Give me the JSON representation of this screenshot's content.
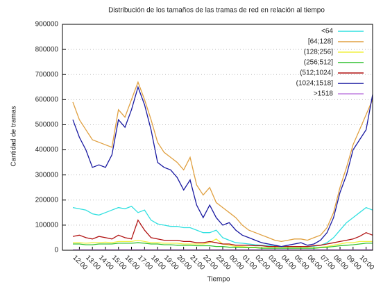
{
  "chart_data": {
    "type": "line",
    "title": "Distribución de los tamaños de las tramas de red en relación al tiempo",
    "x_label": "Tiempo",
    "y_label": "Cantidad de tramas",
    "categories": [
      null,
      "12:00",
      null,
      "13:00",
      null,
      "14:00",
      null,
      "15:00",
      null,
      "16:00",
      null,
      "17:00",
      null,
      "18:00",
      null,
      "19:00",
      null,
      "20:00",
      null,
      "21:00",
      null,
      "22:00",
      null,
      "23:00",
      null,
      "00:00",
      null,
      "01:00",
      null,
      "02:00",
      null,
      "03:00",
      null,
      "04:00",
      null,
      "05:00",
      null,
      "06:00",
      null,
      "07:00",
      null,
      "08:00",
      null,
      "09:00",
      null,
      "10:00",
      null
    ],
    "ylim": [
      0,
      900000
    ],
    "yticks": [
      0,
      100000,
      200000,
      300000,
      400000,
      500000,
      600000,
      700000,
      800000,
      900000
    ],
    "grid": true,
    "legend": "top-right",
    "series": [
      {
        "name": "<64",
        "color": "#30e0e0",
        "values": [
          170000,
          165000,
          160000,
          145000,
          140000,
          150000,
          160000,
          170000,
          165000,
          175000,
          150000,
          160000,
          120000,
          105000,
          100000,
          95000,
          95000,
          90000,
          90000,
          80000,
          70000,
          70000,
          80000,
          50000,
          40000,
          30000,
          28000,
          25000,
          22000,
          20000,
          18000,
          16000,
          15000,
          15000,
          15000,
          15000,
          15000,
          16000,
          20000,
          30000,
          50000,
          80000,
          110000,
          130000,
          150000,
          170000,
          160000
        ]
      },
      {
        "name": "[64;128]",
        "color": "#e0a040",
        "values": [
          590000,
          520000,
          480000,
          440000,
          430000,
          420000,
          410000,
          560000,
          530000,
          600000,
          670000,
          600000,
          520000,
          430000,
          390000,
          370000,
          350000,
          320000,
          370000,
          260000,
          220000,
          250000,
          190000,
          170000,
          150000,
          130000,
          100000,
          80000,
          70000,
          60000,
          50000,
          40000,
          35000,
          40000,
          45000,
          45000,
          40000,
          50000,
          60000,
          90000,
          150000,
          250000,
          330000,
          420000,
          480000,
          540000,
          600000
        ]
      },
      {
        "name": "(128;256]",
        "color": "#f0f040",
        "values": [
          30000,
          30000,
          28000,
          30000,
          30000,
          32000,
          30000,
          35000,
          35000,
          35000,
          40000,
          35000,
          30000,
          30000,
          28000,
          28000,
          28000,
          25000,
          25000,
          25000,
          25000,
          30000,
          45000,
          25000,
          20000,
          15000,
          15000,
          12000,
          12000,
          10000,
          10000,
          10000,
          10000,
          10000,
          10000,
          10000,
          10000,
          10000,
          12000,
          15000,
          20000,
          25000,
          30000,
          30000,
          35000,
          35000,
          35000
        ]
      },
      {
        "name": "(256;512]",
        "color": "#30c030",
        "values": [
          25000,
          25000,
          22000,
          22000,
          25000,
          25000,
          25000,
          28000,
          28000,
          28000,
          30000,
          28000,
          25000,
          25000,
          22000,
          22000,
          20000,
          20000,
          20000,
          18000,
          18000,
          18000,
          15000,
          15000,
          12000,
          12000,
          10000,
          10000,
          10000,
          8000,
          8000,
          8000,
          8000,
          8000,
          8000,
          8000,
          8000,
          8000,
          10000,
          12000,
          15000,
          18000,
          20000,
          22000,
          25000,
          28000,
          28000
        ]
      },
      {
        "name": "(512;1024]",
        "color": "#b01010",
        "values": [
          55000,
          60000,
          50000,
          45000,
          55000,
          50000,
          45000,
          60000,
          50000,
          45000,
          120000,
          80000,
          50000,
          45000,
          40000,
          40000,
          40000,
          35000,
          35000,
          30000,
          30000,
          35000,
          30000,
          25000,
          25000,
          20000,
          20000,
          20000,
          18000,
          18000,
          15000,
          15000,
          15000,
          15000,
          15000,
          15000,
          15000,
          18000,
          20000,
          25000,
          30000,
          35000,
          40000,
          45000,
          55000,
          70000,
          60000
        ]
      },
      {
        "name": "(1024;1518]",
        "color": "#1818a0",
        "values": [
          520000,
          450000,
          400000,
          330000,
          340000,
          330000,
          380000,
          520000,
          490000,
          560000,
          650000,
          580000,
          480000,
          350000,
          330000,
          320000,
          290000,
          240000,
          280000,
          180000,
          130000,
          180000,
          130000,
          100000,
          110000,
          80000,
          60000,
          50000,
          40000,
          30000,
          25000,
          20000,
          15000,
          20000,
          25000,
          30000,
          20000,
          25000,
          40000,
          70000,
          130000,
          230000,
          300000,
          400000,
          440000,
          480000,
          620000
        ]
      },
      {
        "name": ">1518",
        "color": "#c080e0",
        "values": [
          2000,
          2000,
          2000,
          2000,
          2000,
          2000,
          2000,
          2000,
          2000,
          2000,
          2000,
          2000,
          2000,
          2000,
          2000,
          2000,
          2000,
          2000,
          2000,
          2000,
          2000,
          2000,
          2000,
          2000,
          2000,
          2000,
          2000,
          2000,
          2000,
          2000,
          2000,
          2000,
          2000,
          2000,
          2000,
          2000,
          2000,
          2000,
          2000,
          2000,
          2000,
          2000,
          2000,
          2000,
          2000,
          2000,
          2000
        ]
      }
    ]
  }
}
